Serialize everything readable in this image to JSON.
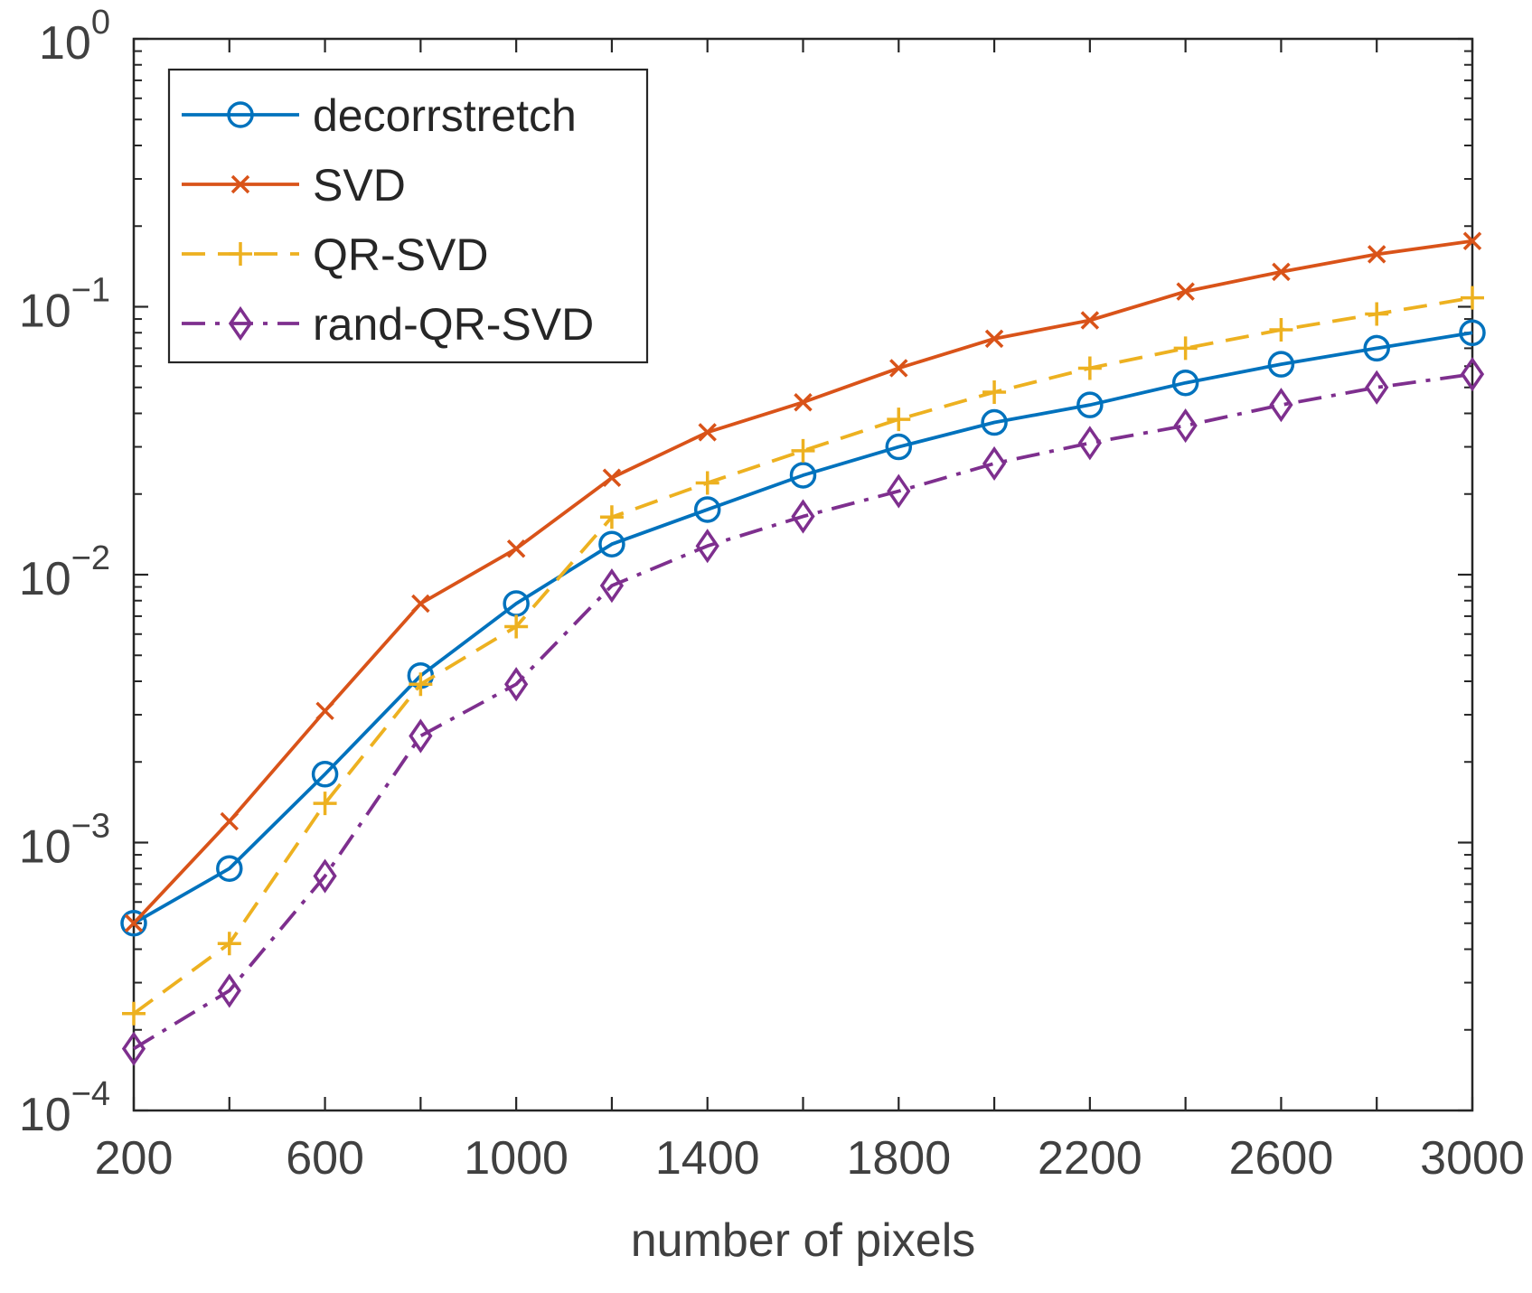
{
  "chart_data": {
    "type": "line",
    "title": "",
    "xlabel": "number of pixels",
    "ylabel": "",
    "xlim": [
      200,
      3000
    ],
    "ylim": [
      0.0001,
      1
    ],
    "yscale": "log",
    "grid": false,
    "legend_position": "top-left",
    "x_ticks": [
      "200",
      "600",
      "1000",
      "1400",
      "1800",
      "2200",
      "2600",
      "3000"
    ],
    "y_ticks": [
      {
        "base": "10",
        "exp": "0"
      },
      {
        "base": "10",
        "exp": "−1"
      },
      {
        "base": "10",
        "exp": "−2"
      },
      {
        "base": "10",
        "exp": "−3"
      },
      {
        "base": "10",
        "exp": "−4"
      }
    ],
    "x": [
      200,
      400,
      600,
      800,
      1000,
      1200,
      1400,
      1600,
      1800,
      2000,
      2200,
      2400,
      2600,
      2800,
      3000
    ],
    "series": [
      {
        "name": "decorrstretch",
        "color": "#0072BD",
        "marker": "circle",
        "dash": "solid",
        "values": [
          0.0005,
          0.0008,
          0.0018,
          0.0042,
          0.0078,
          0.013,
          0.0175,
          0.0235,
          0.03,
          0.037,
          0.043,
          0.052,
          0.061,
          0.07,
          0.08
        ]
      },
      {
        "name": "SVD",
        "color": "#D95319",
        "marker": "x",
        "dash": "solid",
        "values": [
          0.0005,
          0.0012,
          0.0031,
          0.0078,
          0.0125,
          0.023,
          0.034,
          0.044,
          0.059,
          0.076,
          0.089,
          0.114,
          0.135,
          0.157,
          0.176
        ]
      },
      {
        "name": "QR-SVD",
        "color": "#EDB120",
        "marker": "plus",
        "dash": "dashed",
        "values": [
          0.00023,
          0.00042,
          0.0014,
          0.0039,
          0.0064,
          0.0164,
          0.022,
          0.029,
          0.038,
          0.048,
          0.059,
          0.07,
          0.082,
          0.094,
          0.108
        ]
      },
      {
        "name": "rand-QR-SVD",
        "color": "#7E2F8E",
        "marker": "diamond",
        "dash": "dashdot",
        "values": [
          0.00017,
          0.00028,
          0.00075,
          0.0025,
          0.0039,
          0.0091,
          0.0128,
          0.0165,
          0.0205,
          0.026,
          0.031,
          0.036,
          0.043,
          0.05,
          0.056
        ]
      }
    ]
  }
}
